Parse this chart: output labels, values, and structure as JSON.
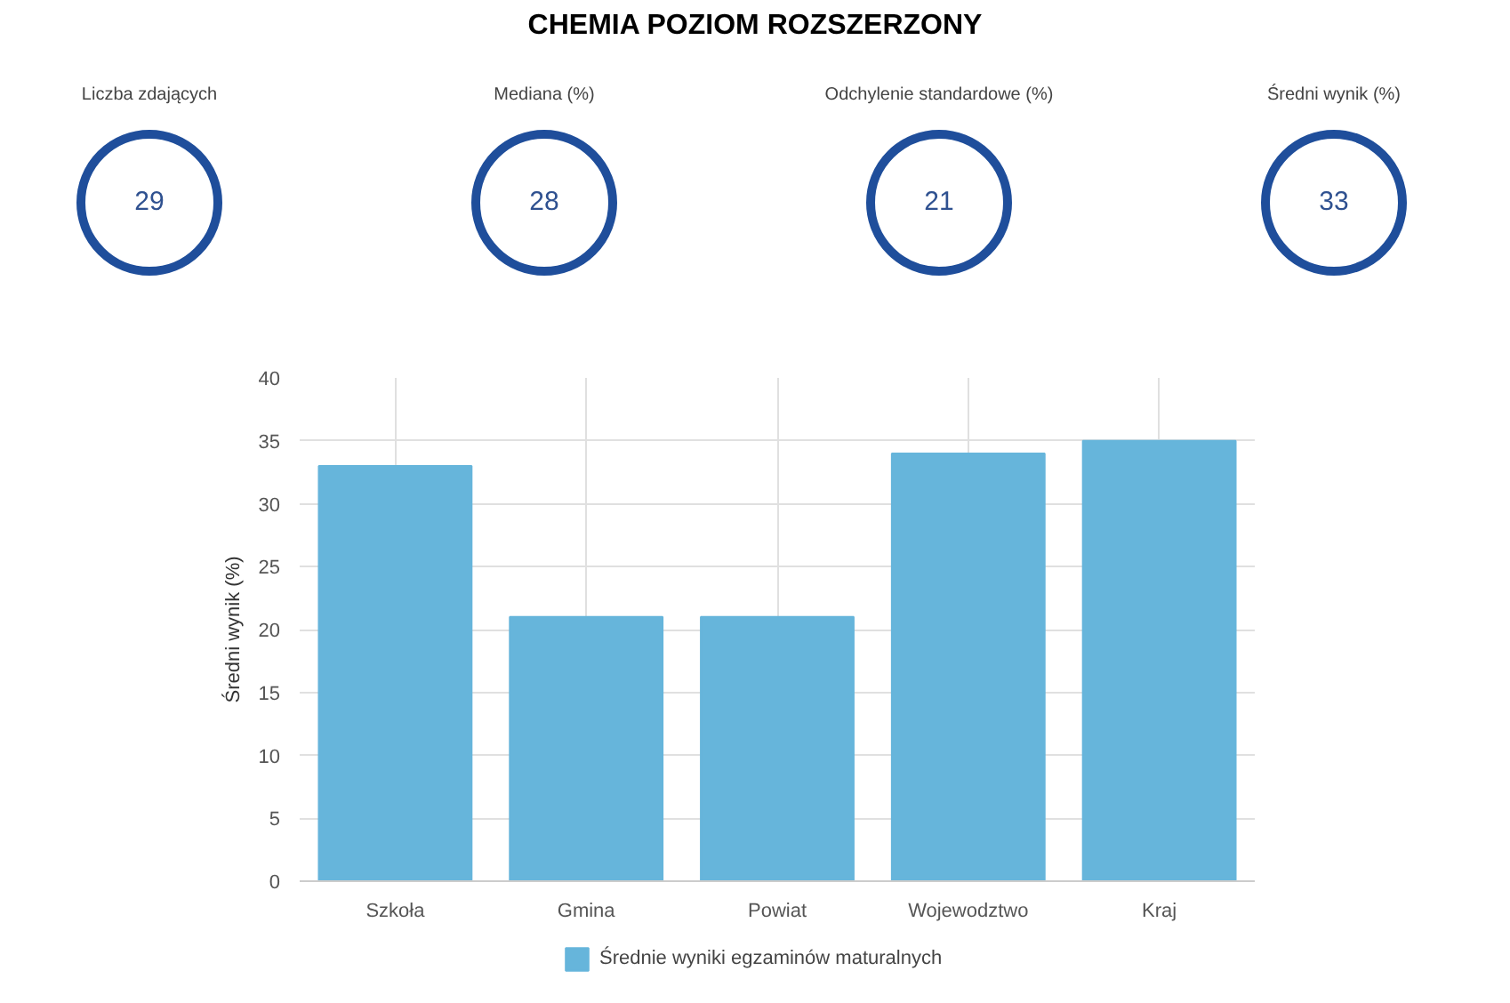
{
  "chart_data": [
    {
      "type": "other",
      "title": "CHEMIA POZIOM ROZSZERZONY",
      "categories": [
        "Liczba zdających",
        "Mediana (%)",
        "Odchylenie standardowe (%)",
        "Średni wynik (%)"
      ],
      "values": [
        29,
        28,
        21,
        33
      ],
      "color": "#1f4e9b",
      "data_labels": true
    },
    {
      "type": "bar",
      "categories": [
        "Szkoła",
        "Gmina",
        "Powiat",
        "Wojewodztwo",
        "Kraj"
      ],
      "series": [
        {
          "name": "Średnie wyniki egzaminów maturalnych",
          "color": "#66b5db",
          "values": [
            33,
            21,
            21,
            34,
            35
          ]
        }
      ],
      "ylabel": "Średni wynik (%)",
      "ylim": [
        0,
        40
      ],
      "yticks": [
        0,
        5,
        10,
        15,
        20,
        25,
        30,
        35,
        40
      ],
      "grid": true,
      "legend": "bottom"
    }
  ]
}
